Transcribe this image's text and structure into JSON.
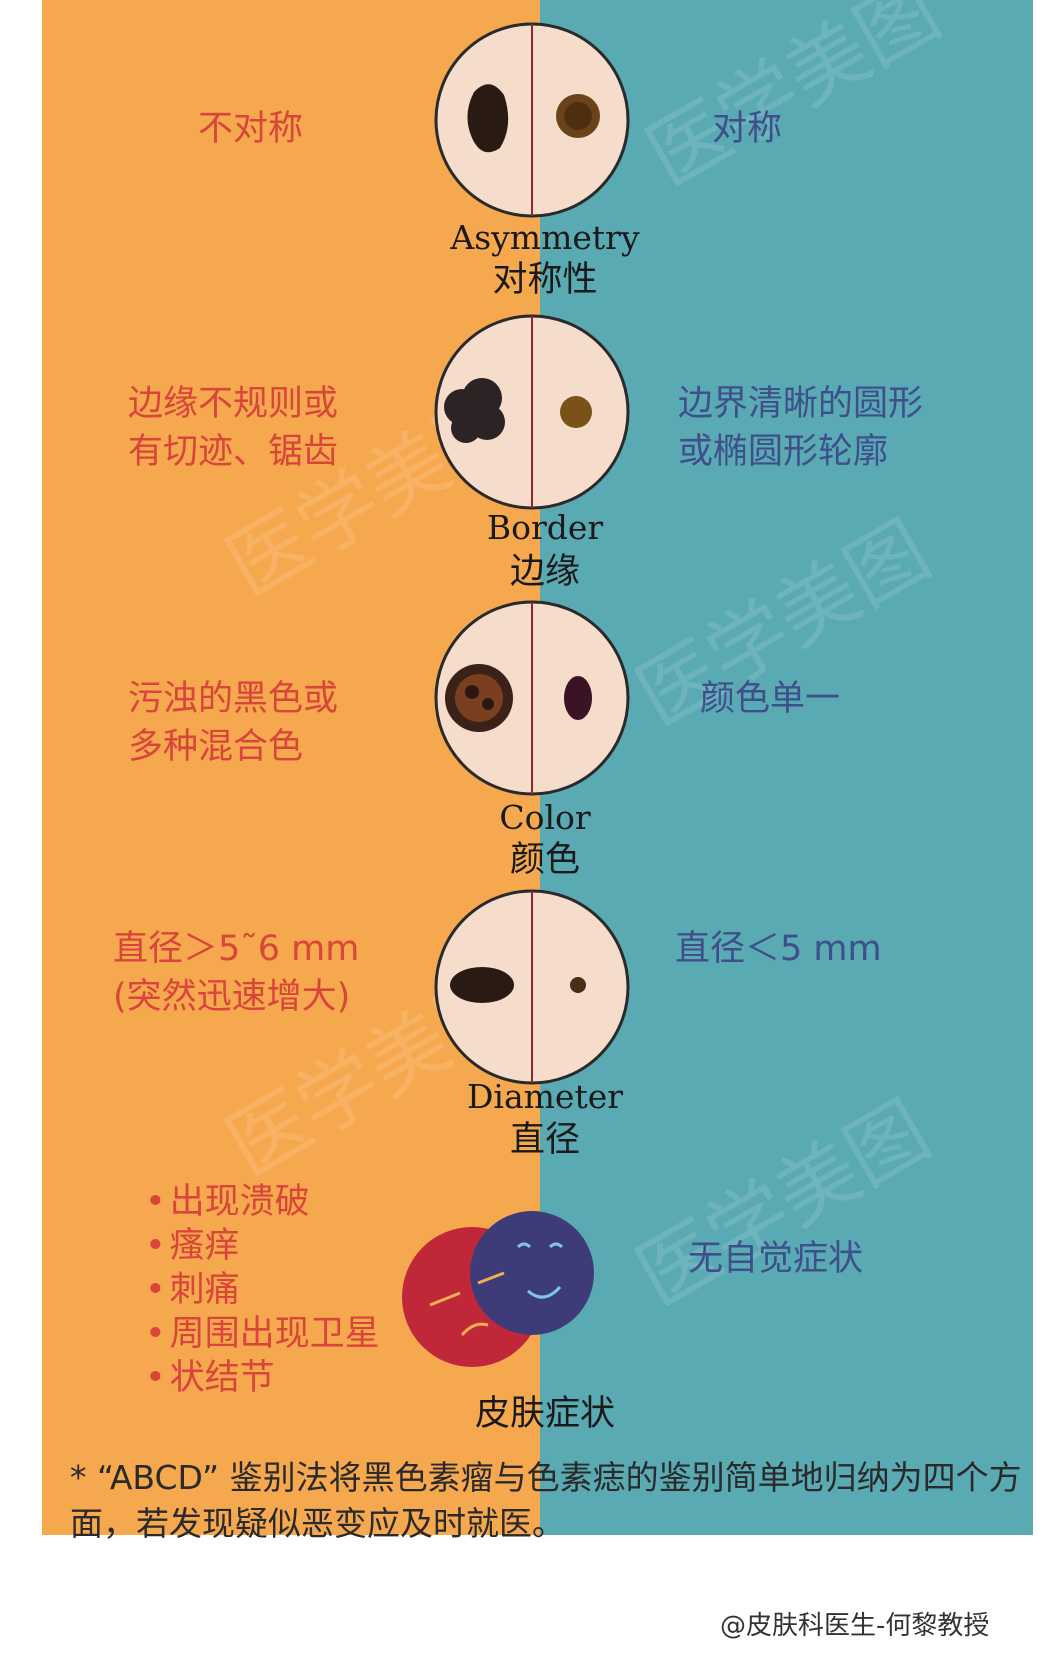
{
  "colors": {
    "left_bg": "#f6a84e",
    "right_bg": "#5aaab4",
    "left_text": "#d9453a",
    "right_text": "#3e4f8c"
  },
  "asymmetry": {
    "left": "不对称",
    "right": "对称",
    "title_en": "Asymmetry",
    "title_zh": "对称性"
  },
  "border": {
    "left": "边缘不规则或\n有切迹、锯齿",
    "right": "边界清晰的圆形\n或椭圆形轮廓",
    "title_en": "Border",
    "title_zh": "边缘"
  },
  "color": {
    "left": "污浊的黑色或\n多种混合色",
    "right": "颜色单一",
    "title_en": "Color",
    "title_zh": "颜色"
  },
  "diameter": {
    "left": "直径＞5˜6 mm\n(突然迅速增大)",
    "right": "直径＜5 mm",
    "title_en": "Diameter",
    "title_zh": "直径"
  },
  "symptoms": {
    "bullets": [
      "出现溃破",
      "瘙痒",
      "刺痛",
      "周围出现卫星",
      "状结节"
    ],
    "right": "无自觉症状",
    "title_zh": "皮肤症状"
  },
  "note": "* “ABCD” 鉴别法将黑色素瘤与色素痣的鉴别简单地归纳为四个方面，若发现疑似恶变应及时就医。",
  "credit": "@皮肤科医生-何黎教授",
  "watermark": "医学美图"
}
